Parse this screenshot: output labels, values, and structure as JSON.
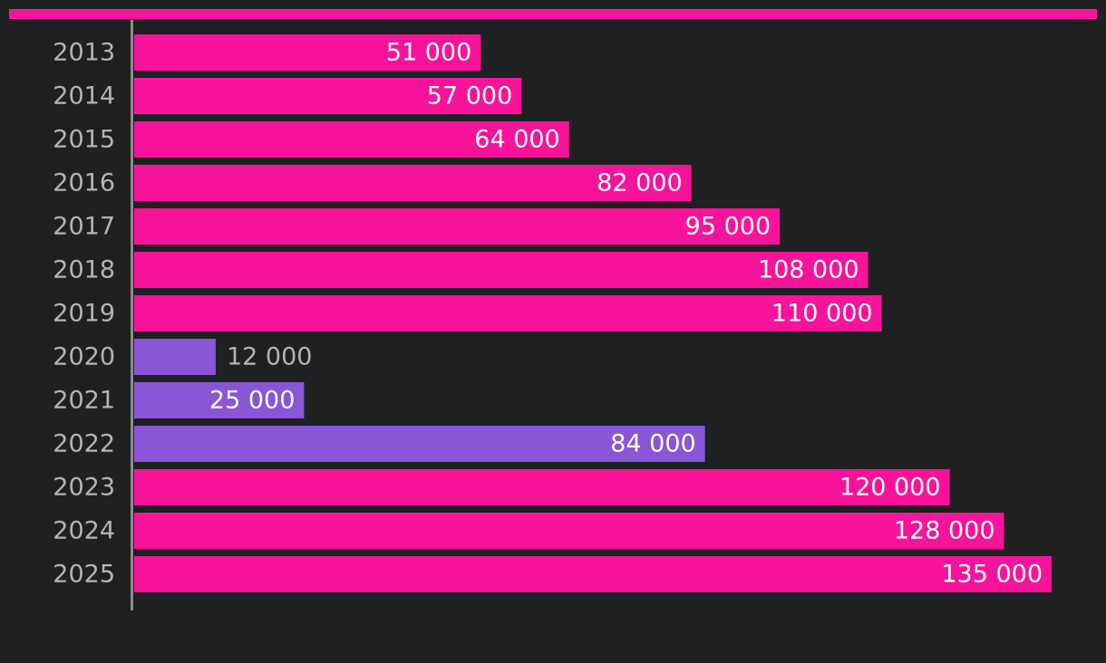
{
  "colors": {
    "background": "#1f2022",
    "accent": "#f7139a",
    "highlight": "#8a55d6",
    "axis": "#8c8c8c",
    "label_inside": "#ffffff",
    "label_outside": "#b4b4b4",
    "year_label": "#b4b4b4"
  },
  "chart_data": {
    "type": "bar",
    "orientation": "horizontal",
    "title": "",
    "xlabel": "",
    "ylabel": "",
    "categories": [
      "2013",
      "2014",
      "2015",
      "2016",
      "2017",
      "2018",
      "2019",
      "2020",
      "2021",
      "2022",
      "2023",
      "2024",
      "2025"
    ],
    "values": [
      51000,
      57000,
      64000,
      82000,
      95000,
      108000,
      110000,
      12000,
      25000,
      84000,
      120000,
      128000,
      135000
    ],
    "value_labels": [
      "51 000",
      "57 000",
      "64 000",
      "82 000",
      "95 000",
      "108 000",
      "110 000",
      "12 000",
      "25 000",
      "84 000",
      "120 000",
      "128 000",
      "135 000"
    ],
    "highlighted_categories": [
      "2020",
      "2021",
      "2022"
    ],
    "xlim": [
      0,
      135000
    ],
    "grid": false,
    "legend": "none"
  }
}
